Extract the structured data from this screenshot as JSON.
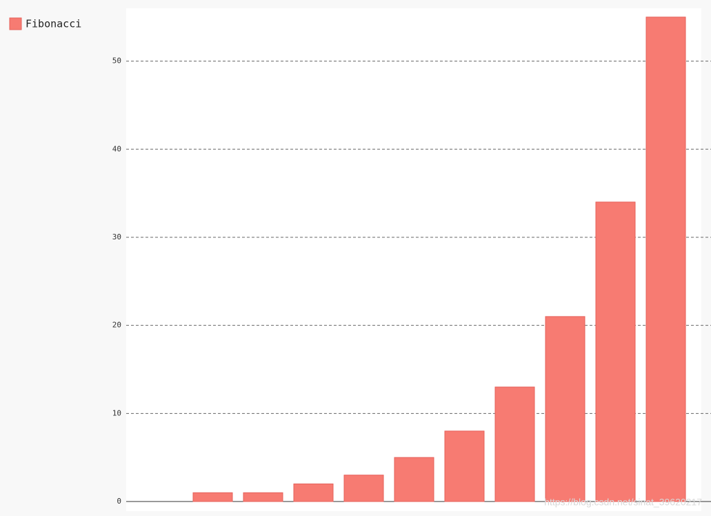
{
  "chart_data": {
    "type": "bar",
    "categories": [
      null,
      null,
      null,
      null,
      null,
      null,
      null,
      null,
      null,
      null,
      null
    ],
    "series": [
      {
        "name": "Fibonacci",
        "color": "#f77b72",
        "values": [
          0,
          1,
          1,
          2,
          3,
          5,
          8,
          13,
          21,
          34,
          55
        ]
      }
    ],
    "ylim": [
      0,
      56
    ],
    "yticks": [
      0,
      10,
      20,
      30,
      40,
      50
    ],
    "grid": true,
    "legend": "top-left",
    "watermark": "https://blog.csdn.net/sinat_39620217"
  }
}
